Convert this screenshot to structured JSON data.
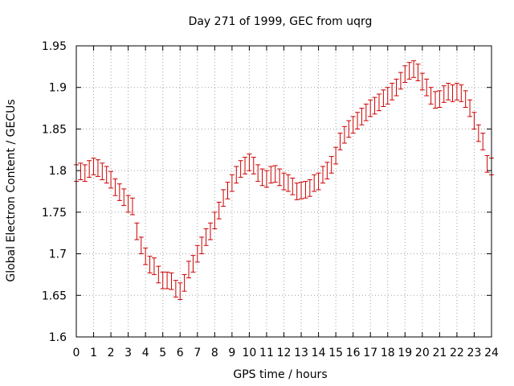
{
  "chart_data": {
    "type": "scatter",
    "title": "Day 271 of 1999, GEC from uqrg",
    "xlabel": "GPS time / hours",
    "ylabel": "Global Electron Content / GECUs",
    "xlim": [
      0,
      24
    ],
    "ylim": [
      1.6,
      1.95
    ],
    "grid": true,
    "x_ticks": [
      "0",
      "1",
      "2",
      "3",
      "4",
      "5",
      "6",
      "7",
      "8",
      "9",
      "10",
      "11",
      "12",
      "13",
      "14",
      "15",
      "16",
      "17",
      "18",
      "19",
      "20",
      "21",
      "22",
      "23",
      "24"
    ],
    "y_ticks": [
      "1.6",
      "1.65",
      "1.7",
      "1.75",
      "1.8",
      "1.85",
      "1.9",
      "1.95"
    ],
    "y_tick_values": [
      1.6,
      1.65,
      1.7,
      1.75,
      1.8,
      1.85,
      1.9,
      1.95
    ],
    "error": 0.01,
    "color": "#cc0000",
    "series": [
      {
        "name": "GEC",
        "x": [
          0,
          0.25,
          0.5,
          0.75,
          1,
          1.25,
          1.5,
          1.75,
          2,
          2.25,
          2.5,
          2.75,
          3,
          3.25,
          3.5,
          3.75,
          4,
          4.25,
          4.5,
          4.75,
          5,
          5.25,
          5.5,
          5.75,
          6,
          6.25,
          6.5,
          6.75,
          7,
          7.25,
          7.5,
          7.75,
          8,
          8.25,
          8.5,
          8.75,
          9,
          9.25,
          9.5,
          9.75,
          10,
          10.25,
          10.5,
          10.75,
          11,
          11.25,
          11.5,
          11.75,
          12,
          12.25,
          12.5,
          12.75,
          13,
          13.25,
          13.5,
          13.75,
          14,
          14.25,
          14.5,
          14.75,
          15,
          15.25,
          15.5,
          15.75,
          16,
          16.25,
          16.5,
          16.75,
          17,
          17.25,
          17.5,
          17.75,
          18,
          18.25,
          18.5,
          18.75,
          19,
          19.25,
          19.5,
          19.75,
          20,
          20.25,
          20.5,
          20.75,
          21,
          21.25,
          21.5,
          21.75,
          22,
          22.25,
          22.5,
          22.75,
          23,
          23.25,
          23.5,
          23.75,
          24
        ],
        "y": [
          1.797,
          1.799,
          1.797,
          1.802,
          1.805,
          1.803,
          1.799,
          1.795,
          1.789,
          1.78,
          1.774,
          1.768,
          1.76,
          1.757,
          1.727,
          1.71,
          1.697,
          1.687,
          1.685,
          1.675,
          1.668,
          1.668,
          1.667,
          1.658,
          1.655,
          1.665,
          1.681,
          1.688,
          1.7,
          1.71,
          1.72,
          1.727,
          1.74,
          1.752,
          1.767,
          1.776,
          1.785,
          1.795,
          1.802,
          1.806,
          1.81,
          1.806,
          1.797,
          1.792,
          1.79,
          1.795,
          1.796,
          1.792,
          1.787,
          1.785,
          1.781,
          1.775,
          1.776,
          1.777,
          1.779,
          1.785,
          1.787,
          1.795,
          1.8,
          1.807,
          1.818,
          1.835,
          1.843,
          1.85,
          1.855,
          1.86,
          1.865,
          1.87,
          1.875,
          1.878,
          1.882,
          1.887,
          1.89,
          1.895,
          1.9,
          1.908,
          1.916,
          1.92,
          1.922,
          1.918,
          1.907,
          1.9,
          1.89,
          1.885,
          1.886,
          1.892,
          1.895,
          1.893,
          1.895,
          1.893,
          1.886,
          1.875,
          1.86,
          1.845,
          1.835,
          1.808,
          1.805
        ]
      }
    ]
  }
}
